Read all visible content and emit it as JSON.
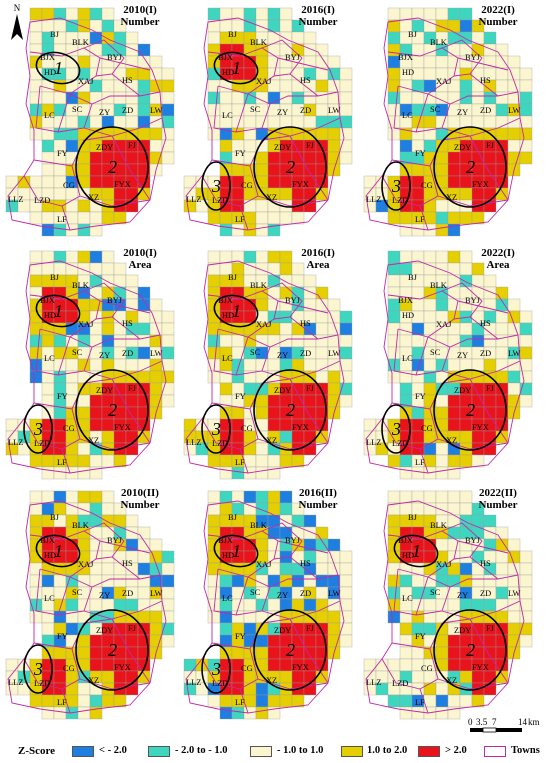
{
  "north_label": "N",
  "panels": [
    {
      "title1": "2010(I)",
      "title2": "Number",
      "hotspots": [
        "2"
      ],
      "clusters": [
        "1",
        "2"
      ]
    },
    {
      "title1": "2016(I)",
      "title2": "Number",
      "hotspots": [
        "1",
        "2",
        "3"
      ],
      "clusters": [
        "1",
        "2",
        "3"
      ]
    },
    {
      "title1": "2022(I)",
      "title2": "Number",
      "hotspots": [
        "2",
        "3"
      ],
      "clusters": [
        "2",
        "3"
      ]
    },
    {
      "title1": "2010(I)",
      "title2": "Area",
      "hotspots": [
        "1",
        "2",
        "3"
      ],
      "clusters": [
        "1",
        "2",
        "3"
      ]
    },
    {
      "title1": "2016(I)",
      "title2": "Area",
      "hotspots": [
        "1",
        "2",
        "3"
      ],
      "clusters": [
        "1",
        "2",
        "3"
      ]
    },
    {
      "title1": "2022(I)",
      "title2": "Area",
      "hotspots": [
        "2",
        "3"
      ],
      "clusters": [
        "2",
        "3"
      ]
    },
    {
      "title1": "2010(II)",
      "title2": "Number",
      "hotspots": [
        "1",
        "2",
        "3"
      ],
      "clusters": [
        "1",
        "2",
        "3"
      ]
    },
    {
      "title1": "2016(II)",
      "title2": "Number",
      "hotspots": [
        "1",
        "2",
        "3"
      ],
      "clusters": [
        "1",
        "2",
        "3"
      ]
    },
    {
      "title1": "2022(II)",
      "title2": "Number",
      "hotspots": [
        "1",
        "2"
      ],
      "clusters": [
        "1",
        "2"
      ]
    }
  ],
  "towns": [
    "BJ",
    "BLK",
    "BJX",
    "BYJ",
    "HD",
    "XAJ",
    "HS",
    "LC",
    "SC",
    "ZY",
    "ZD",
    "LW",
    "FY",
    "ZDY",
    "FJ",
    "CG",
    "FYX",
    "LLZ",
    "LZD",
    "XZ",
    "LF"
  ],
  "cluster_labels": {
    "1": "1",
    "2": "2",
    "3": "3"
  },
  "scalebar": {
    "ticks": [
      "0",
      "3.5",
      "7",
      "14"
    ],
    "unit": "km"
  },
  "legend": {
    "title": "Z-Score",
    "items": [
      {
        "label": "< - 2.0",
        "color": "#1f7fe0"
      },
      {
        "label": "- 2.0 to - 1.0",
        "color": "#3fd6c0"
      },
      {
        "label": "- 1.0 to 1.0",
        "color": "#fbf6cf"
      },
      {
        "label": "1.0 to 2.0",
        "color": "#e6cf00"
      },
      {
        "label": "> 2.0",
        "color": "#e8131b"
      }
    ],
    "towns_label": "Towns",
    "towns_color": "#c02aa8"
  }
}
